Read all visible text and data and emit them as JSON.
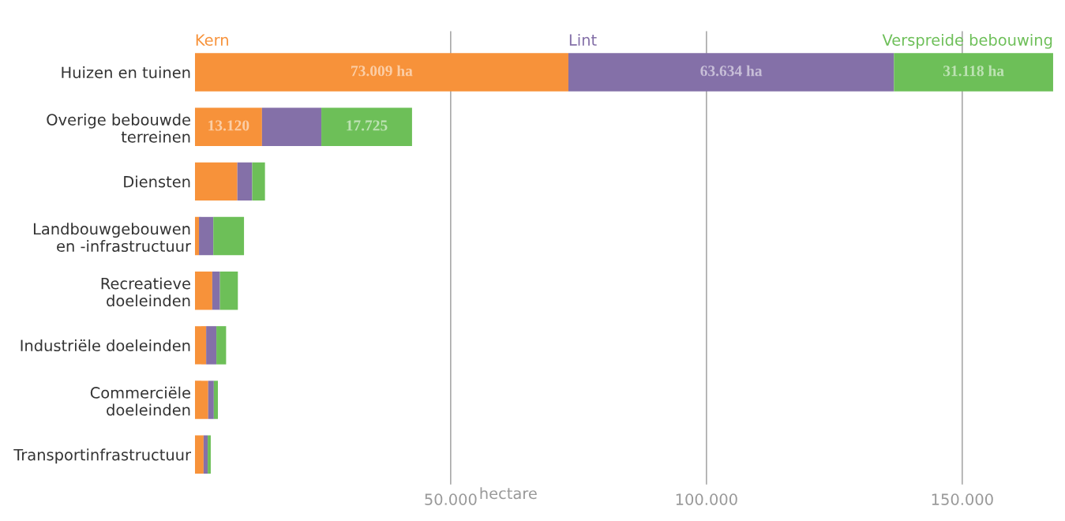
{
  "chart_data": {
    "type": "bar",
    "orientation": "horizontal",
    "stacked": true,
    "xlabel": "hectare",
    "categories": [
      "Huizen en tuinen",
      "Overige bebouwde\nterreinen",
      "Diensten",
      "Landbouwgebouwen\nen -infrastructuur",
      "Recreatieve\ndoeleinden",
      "Industriële doeleinden",
      "Commerciële\ndoeleinden",
      "Transportinfrastructuur"
    ],
    "series": [
      {
        "name": "Kern",
        "color": "#f7923a",
        "values": [
          73009,
          13120,
          8300,
          800,
          3400,
          2200,
          2600,
          1700
        ],
        "value_labels": [
          "73.009 ha",
          "13.120",
          null,
          null,
          null,
          null,
          null,
          null
        ]
      },
      {
        "name": "Lint",
        "color": "#8470a8",
        "values": [
          63634,
          11600,
          2900,
          2800,
          1500,
          2000,
          1100,
          800
        ],
        "value_labels": [
          "63.634 ha",
          null,
          null,
          null,
          null,
          null,
          null,
          null
        ]
      },
      {
        "name": "Verspreide bebouwing",
        "color": "#6dbf58",
        "values": [
          31118,
          17725,
          2500,
          6000,
          3500,
          1900,
          800,
          600
        ],
        "value_labels": [
          "31.118 ha",
          "17.725",
          null,
          null,
          null,
          null,
          null,
          null
        ]
      }
    ],
    "xlim": [
      0,
      168000
    ],
    "xticks": [
      {
        "value": 50000,
        "label": "50.000"
      },
      {
        "value": 100000,
        "label": "100.000"
      },
      {
        "value": 150000,
        "label": "150.000"
      }
    ],
    "grid": "x",
    "legend": false
  }
}
